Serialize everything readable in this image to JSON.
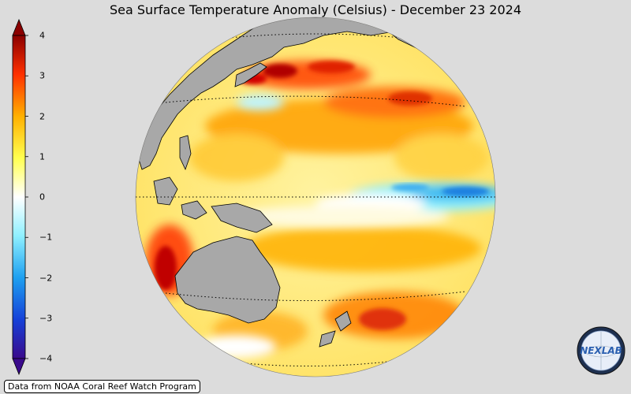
{
  "title": "Sea Surface Temperature Anomaly (Celsius) - December 23 2024",
  "colorbar": {
    "ticks": [
      "4",
      "3",
      "2",
      "1",
      "0",
      "−1",
      "−2",
      "−3",
      "−4"
    ],
    "min": -4,
    "max": 4,
    "colors": [
      "#3a0a8c",
      "#1540d8",
      "#1ea0f0",
      "#8ff0ff",
      "#ffffff",
      "#ffff50",
      "#ffb000",
      "#ff3000",
      "#8b0000"
    ]
  },
  "credit": "Data from NOAA Coral Reef Watch Program",
  "logo": {
    "text": "NEXLAB"
  }
}
